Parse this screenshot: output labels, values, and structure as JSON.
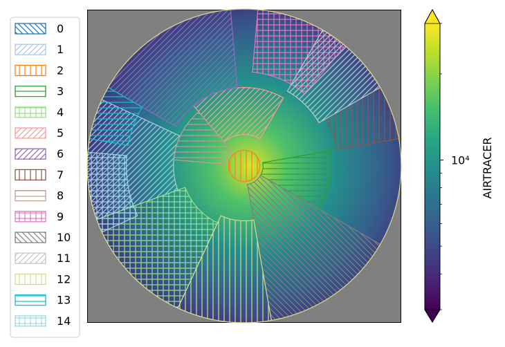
{
  "chart_data": {
    "type": "heatmap",
    "title": "",
    "projection": "north polar stereographic, circular boundary",
    "background": "#808080",
    "colormap": "viridis",
    "colorbar": {
      "label": "AIRTRACER",
      "scale": "log",
      "extend": "both",
      "range": [
        3000,
        30000
      ],
      "major_ticks": [
        {
          "value": 10000,
          "label": "10⁴"
        }
      ],
      "minor_ticks": [
        3000,
        4000,
        5000,
        6000,
        7000,
        8000,
        9000,
        20000,
        30000
      ]
    },
    "legend": {
      "placement": "left",
      "entries": [
        {
          "label": "0",
          "color": "#1f77b4",
          "hatch": "backslash"
        },
        {
          "label": "1",
          "color": "#aec7e8",
          "hatch": "slash"
        },
        {
          "label": "2",
          "color": "#ff7f0e",
          "hatch": "vertical"
        },
        {
          "label": "3",
          "color": "#2ca02c",
          "hatch": "horizontal"
        },
        {
          "label": "4",
          "color": "#98df8a",
          "hatch": "grid"
        },
        {
          "label": "5",
          "color": "#ff9896",
          "hatch": "slash"
        },
        {
          "label": "6",
          "color": "#9467bd",
          "hatch": "slash"
        },
        {
          "label": "7",
          "color": "#8c564b",
          "hatch": "vertical"
        },
        {
          "label": "8",
          "color": "#c49c94",
          "hatch": "horizontal"
        },
        {
          "label": "9",
          "color": "#e377c2",
          "hatch": "grid"
        },
        {
          "label": "10",
          "color": "#7f7f7f",
          "hatch": "backslash"
        },
        {
          "label": "11",
          "color": "#c7c7c7",
          "hatch": "slash"
        },
        {
          "label": "12",
          "color": "#dbdb8d",
          "hatch": "vertical"
        },
        {
          "label": "13",
          "color": "#17becf",
          "hatch": "horizontal"
        },
        {
          "label": "14",
          "color": "#9edae5",
          "hatch": "grid"
        }
      ]
    },
    "regions": [
      {
        "label": "0",
        "angle_range": [
          0,
          0
        ],
        "radius_range": [
          0,
          0
        ]
      },
      {
        "label": "1",
        "angle_range": [
          155,
          200
        ],
        "radius_range": [
          0.45,
          1.0
        ]
      },
      {
        "label": "2",
        "angle_range": [
          0,
          360
        ],
        "radius_range": [
          0,
          0.1
        ]
      },
      {
        "label": "3",
        "angle_range": [
          -30,
          10
        ],
        "radius_range": [
          0.12,
          0.55
        ]
      },
      {
        "label": "4",
        "angle_range": [
          200,
          245
        ],
        "radius_range": [
          0.4,
          1.0
        ]
      },
      {
        "label": "5",
        "angle_range": [
          60,
          130
        ],
        "radius_range": [
          0.2,
          0.5
        ]
      },
      {
        "label": "6",
        "angle_range": [
          95,
          150
        ],
        "radius_range": [
          0.5,
          1.0
        ]
      },
      {
        "label": "7",
        "angle_range": [
          10,
          30
        ],
        "radius_range": [
          0.6,
          1.0
        ]
      },
      {
        "label": "8",
        "angle_range": [
          130,
          175
        ],
        "radius_range": [
          0.12,
          0.45
        ]
      },
      {
        "label": "9",
        "angle_range": [
          50,
          85
        ],
        "radius_range": [
          0.6,
          1.0
        ]
      },
      {
        "label": "10",
        "angle_range": [
          -80,
          -30
        ],
        "radius_range": [
          0.12,
          1.0
        ]
      },
      {
        "label": "11",
        "angle_range": [
          30,
          60
        ],
        "radius_range": [
          0.55,
          1.0
        ]
      },
      {
        "label": "12",
        "angle_range": [
          245,
          280
        ],
        "radius_range": [
          0.35,
          1.0
        ]
      },
      {
        "label": "13",
        "angle_range": [
          150,
          170
        ],
        "radius_range": [
          0.75,
          1.0
        ]
      },
      {
        "label": "14",
        "angle_range": [
          175,
          205
        ],
        "radius_range": [
          0.75,
          1.0
        ]
      }
    ]
  }
}
